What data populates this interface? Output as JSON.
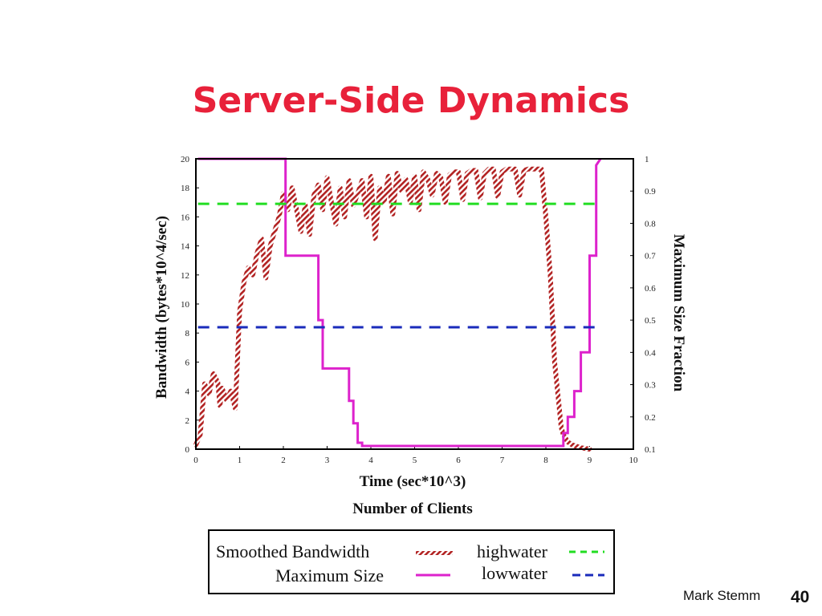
{
  "slide": {
    "title": "Server-Side Dynamics",
    "author": "Mark Stemm",
    "page_number": "40"
  },
  "chart_data": {
    "type": "line",
    "xlabel": "Time (sec*10^3)",
    "xlabel2": "Number of Clients",
    "ylabel": "Bandwidth (bytes*10^4/sec)",
    "y2label": "Maximum Size Fraction",
    "xlim": [
      0,
      10
    ],
    "ylim": [
      0,
      20
    ],
    "y2lim": [
      0.1,
      1
    ],
    "x_ticks": [
      "0",
      "1",
      "2",
      "3",
      "4",
      "5",
      "6",
      "7",
      "8",
      "9",
      "10"
    ],
    "y_ticks": [
      "0",
      "2",
      "4",
      "6",
      "8",
      "10",
      "12",
      "14",
      "16",
      "18",
      "20"
    ],
    "y2_ticks": [
      "0.1",
      "0.2",
      "0.3",
      "0.4",
      "0.5",
      "0.6",
      "0.7",
      "0.8",
      "0.9",
      "1"
    ],
    "grid": false,
    "legend_placement": "bottom",
    "series": [
      {
        "name": "Smoothed Bandwidth",
        "axis": "left",
        "color": "#b22222",
        "style": "hatched",
        "x": [
          0.0,
          0.1,
          0.2,
          0.3,
          0.4,
          0.5,
          0.55,
          0.6,
          0.7,
          0.8,
          0.9,
          1.0,
          1.1,
          1.2,
          1.3,
          1.4,
          1.5,
          1.6,
          1.7,
          1.8,
          1.9,
          2.0,
          2.1,
          2.2,
          2.3,
          2.4,
          2.5,
          2.6,
          2.7,
          2.8,
          2.9,
          3.0,
          3.1,
          3.2,
          3.3,
          3.4,
          3.5,
          3.6,
          3.7,
          3.8,
          3.9,
          4.0,
          4.1,
          4.2,
          4.3,
          4.4,
          4.5,
          4.6,
          4.7,
          4.8,
          4.9,
          5.0,
          5.1,
          5.2,
          5.3,
          5.4,
          5.5,
          5.6,
          5.7,
          5.8,
          5.9,
          6.0,
          6.1,
          6.2,
          6.3,
          6.4,
          6.5,
          6.6,
          6.7,
          6.8,
          6.9,
          7.0,
          7.1,
          7.2,
          7.3,
          7.4,
          7.5,
          7.6,
          7.7,
          7.8,
          7.9,
          8.0,
          8.1,
          8.2,
          8.3,
          8.35,
          8.4,
          8.5,
          8.6,
          8.7,
          8.8,
          9.0
        ],
        "y": [
          0.3,
          1.0,
          4.5,
          3.8,
          5.2,
          4.6,
          3.0,
          4.2,
          3.4,
          4.0,
          2.8,
          9.5,
          11.5,
          12.5,
          12.0,
          13.5,
          14.5,
          11.8,
          14.0,
          15.0,
          16.0,
          17.6,
          16.5,
          18.0,
          16.5,
          15.0,
          16.8,
          14.8,
          17.5,
          18.2,
          16.5,
          18.7,
          17.0,
          15.5,
          18.0,
          16.0,
          18.5,
          16.8,
          17.6,
          18.5,
          16.0,
          18.8,
          14.5,
          18.0,
          17.0,
          18.8,
          16.2,
          19.0,
          17.8,
          18.6,
          17.0,
          18.8,
          16.5,
          19.1,
          18.6,
          17.5,
          19.0,
          18.7,
          17.0,
          18.9,
          19.1,
          19.1,
          17.2,
          19.0,
          19.2,
          19.2,
          17.3,
          19.0,
          19.3,
          19.3,
          17.4,
          19.1,
          19.3,
          19.3,
          19.3,
          17.5,
          19.2,
          19.3,
          19.3,
          19.3,
          19.3,
          16.0,
          12.0,
          6.0,
          3.0,
          1.5,
          1.0,
          0.5,
          0.3,
          0.2,
          0.1,
          0.0
        ]
      },
      {
        "name": "Maximum Size",
        "axis": "right",
        "color": "#dd22cc",
        "style": "solid",
        "x": [
          0.05,
          2.05,
          2.05,
          2.8,
          2.8,
          2.9,
          2.9,
          3.5,
          3.5,
          3.6,
          3.6,
          3.7,
          3.7,
          3.8,
          3.8,
          8.4,
          8.4,
          8.5,
          8.5,
          8.65,
          8.65,
          8.8,
          8.8,
          9.0,
          9.0,
          9.15,
          9.15,
          9.25
        ],
        "y": [
          1.0,
          1.0,
          0.7,
          0.7,
          0.5,
          0.5,
          0.35,
          0.35,
          0.25,
          0.25,
          0.18,
          0.18,
          0.12,
          0.12,
          0.11,
          0.11,
          0.15,
          0.15,
          0.2,
          0.2,
          0.28,
          0.28,
          0.4,
          0.4,
          0.7,
          0.7,
          0.98,
          1.0
        ]
      },
      {
        "name": "highwater",
        "axis": "left",
        "color": "#22dd22",
        "style": "dashed",
        "x": [
          0.05,
          9.15
        ],
        "y": [
          16.9,
          16.9
        ]
      },
      {
        "name": "lowwater",
        "axis": "left",
        "color": "#1a2bbb",
        "style": "dashed",
        "x": [
          0.05,
          9.15
        ],
        "y": [
          8.4,
          8.4
        ]
      }
    ]
  }
}
